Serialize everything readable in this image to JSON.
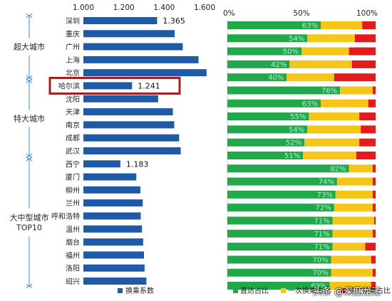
{
  "chart_data": [
    {
      "type": "bar",
      "orientation": "horizontal",
      "categories": [
        "深圳",
        "重庆",
        "广州",
        "上海",
        "北京",
        "哈尔滨",
        "沈阳",
        "天津",
        "南京",
        "成都",
        "武汉",
        "西宁",
        "厦门",
        "柳州",
        "兰州",
        "呼和浩特",
        "温州",
        "烟台",
        "福州",
        "洛阳",
        "绍兴"
      ],
      "values": [
        1.365,
        1.452,
        1.492,
        1.57,
        1.61,
        1.241,
        1.37,
        1.443,
        1.45,
        1.474,
        1.482,
        1.183,
        1.262,
        1.282,
        1.294,
        1.284,
        1.29,
        1.296,
        1.3,
        1.303,
        1.312
      ],
      "data_labels": {
        "深圳": "1.365",
        "哈尔滨": "1.241",
        "西宁": "1.183"
      },
      "xlim": [
        1.0,
        1.6
      ],
      "ticks": [
        "1.000",
        "1.200",
        "1.400",
        "1.600"
      ],
      "legend": "换乘系数",
      "color": "#1f5aa6",
      "groups": [
        {
          "label": "超大城市",
          "range": [
            0,
            4
          ]
        },
        {
          "label": "特大城市",
          "range": [
            5,
            10
          ]
        },
        {
          "label": "大中型城市 TOP10",
          "range": [
            11,
            20
          ],
          "lines": [
            "大中型城市",
            "TOP10"
          ]
        }
      ],
      "highlight": "哈尔滨",
      "highlight_color": "#a32020",
      "bracket_color": "#5b9bd5"
    },
    {
      "type": "bar",
      "orientation": "horizontal",
      "stacked": true,
      "percent": true,
      "categories": [
        "深圳",
        "重庆",
        "广州",
        "上海",
        "北京",
        "哈尔滨",
        "沈阳",
        "天津",
        "南京",
        "成都",
        "武汉",
        "西宁",
        "厦门",
        "柳州",
        "兰州",
        "呼和浩特",
        "温州",
        "烟台",
        "福州",
        "洛阳",
        "绍兴"
      ],
      "ticks": [
        "0%",
        "50%",
        "100%"
      ],
      "series": [
        {
          "name": "直达占比",
          "color": "#20a84a",
          "values": [
            63,
            54,
            50,
            42,
            40,
            76,
            63,
            55,
            54,
            52,
            51,
            82,
            74,
            73,
            72,
            71,
            71,
            71,
            70,
            70,
            69
          ]
        },
        {
          "name": "一次换乘占比",
          "color": "#f5c518",
          "values": [
            28,
            32,
            32,
            42,
            32,
            22,
            32,
            34,
            36,
            37,
            36,
            16,
            24,
            25,
            26,
            28,
            27,
            22,
            27,
            28,
            28
          ]
        },
        {
          "name": "多次换乘占比",
          "color": "#e21c1c",
          "values": [
            9,
            14,
            18,
            16,
            28,
            2,
            5,
            11,
            10,
            11,
            13,
            2,
            2,
            2,
            2,
            1,
            2,
            7,
            3,
            2,
            3
          ]
        }
      ],
      "label_series": "直达占比",
      "label_suffix": "%"
    }
  ],
  "watermark": "头条 @深度龙江"
}
